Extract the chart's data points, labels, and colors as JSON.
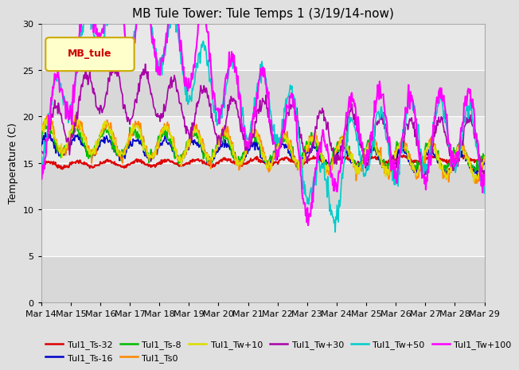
{
  "title": "MB Tule Tower: Tule Temps 1 (3/19/14-now)",
  "ylabel": "Temperature (C)",
  "ylim": [
    0,
    30
  ],
  "yticks": [
    0,
    5,
    10,
    15,
    20,
    25,
    30
  ],
  "fig_bg": "#e0e0e0",
  "plot_bg": "#e8e8e8",
  "band_colors": [
    "#d8d8d8",
    "#e8e8e8"
  ],
  "legend_box_label": "MB_tule",
  "legend_box_facecolor": "#ffffcc",
  "legend_box_edgecolor": "#ccaa00",
  "series": [
    {
      "label": "Tul1_Ts-32",
      "color": "#dd0000",
      "lw": 1.5,
      "zorder": 3
    },
    {
      "label": "Tul1_Ts-16",
      "color": "#0000cc",
      "lw": 1.2,
      "zorder": 3
    },
    {
      "label": "Tul1_Ts-8",
      "color": "#00bb00",
      "lw": 1.2,
      "zorder": 3
    },
    {
      "label": "Tul1_Ts0",
      "color": "#ff8800",
      "lw": 1.2,
      "zorder": 3
    },
    {
      "label": "Tul1_Tw+10",
      "color": "#dddd00",
      "lw": 1.2,
      "zorder": 3
    },
    {
      "label": "Tul1_Tw+30",
      "color": "#aa00aa",
      "lw": 1.2,
      "zorder": 3
    },
    {
      "label": "Tul1_Tw+50",
      "color": "#00cccc",
      "lw": 1.2,
      "zorder": 4
    },
    {
      "label": "Tul1_Tw+100",
      "color": "#ff00ff",
      "lw": 1.5,
      "zorder": 5
    }
  ],
  "x_tick_labels": [
    "Mar 14",
    "Mar 15",
    "Mar 16",
    "Mar 17",
    "Mar 18",
    "Mar 19",
    "Mar 20",
    "Mar 21",
    "Mar 22",
    "Mar 23",
    "Mar 24",
    "Mar 25",
    "Mar 26",
    "Mar 27",
    "Mar 28",
    "Mar 29"
  ],
  "n_days": 15
}
